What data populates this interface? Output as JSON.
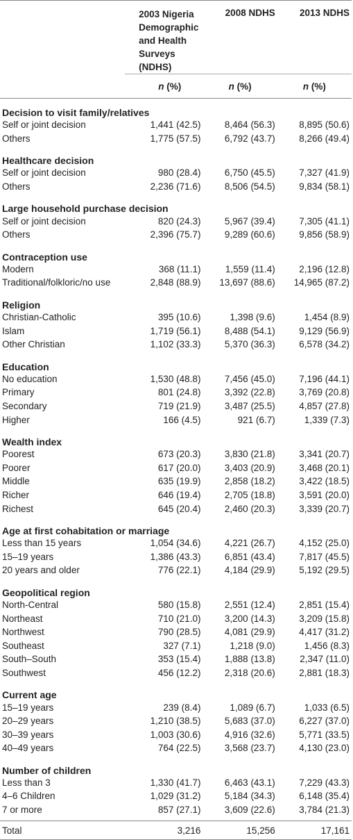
{
  "header": {
    "columns": [
      "2003 Nigeria Demographic and Health Surveys (NDHS)",
      "2008 NDHS",
      "2013 NDHS"
    ],
    "units": [
      {
        "symbol": "n",
        "suffix": "(%)"
      },
      {
        "symbol": "n",
        "suffix": "(%)"
      },
      {
        "symbol": "n",
        "suffix": "(%)"
      }
    ]
  },
  "sections": [
    {
      "title": "Decision to visit family/relatives",
      "rows": [
        [
          "Self or joint decision",
          "1,441 (42.5)",
          "8,464 (56.3)",
          "8,895 (50.6)"
        ],
        [
          "Others",
          "1,775 (57.5)",
          "6,792 (43.7)",
          "8,266 (49.4)"
        ]
      ]
    },
    {
      "title": "Healthcare decision",
      "rows": [
        [
          "Self or joint decision",
          "980 (28.4)",
          "6,750 (45.5)",
          "7,327 (41.9)"
        ],
        [
          "Others",
          "2,236 (71.6)",
          "8,506 (54.5)",
          "9,834 (58.1)"
        ]
      ]
    },
    {
      "title": "Large household purchase decision",
      "rows": [
        [
          "Self or joint decision",
          "820 (24.3)",
          "5,967 (39.4)",
          "7,305 (41.1)"
        ],
        [
          "Others",
          "2,396 (75.7)",
          "9,289 (60.6)",
          "9,856 (58.9)"
        ]
      ]
    },
    {
      "title": "Contraception use",
      "rows": [
        [
          "Modern",
          "368 (11.1)",
          "1,559 (11.4)",
          "2,196 (12.8)"
        ],
        [
          "Traditional/folkloric/no use",
          "2,848 (88.9)",
          "13,697 (88.6)",
          "14,965 (87.2)"
        ]
      ]
    },
    {
      "title": "Religion",
      "rows": [
        [
          "Christian-Catholic",
          "395 (10.6)",
          "1,398 (9.6)",
          "1,454 (8.9)"
        ],
        [
          "Islam",
          "1,719 (56.1)",
          "8,488 (54.1)",
          "9,129 (56.9)"
        ],
        [
          "Other Christian",
          "1,102 (33.3)",
          "5,370 (36.3)",
          "6,578 (34.2)"
        ]
      ]
    },
    {
      "title": "Education",
      "rows": [
        [
          "No education",
          "1,530 (48.8)",
          "7,456 (45.0)",
          "7,196 (44.1)"
        ],
        [
          "Primary",
          "801 (24.8)",
          "3,392 (22.8)",
          "3,769 (20.8)"
        ],
        [
          "Secondary",
          "719 (21.9)",
          "3,487 (25.5)",
          "4,857 (27.8)"
        ],
        [
          "Higher",
          "166 (4.5)",
          "921 (6.7)",
          "1,339 (7.3)"
        ]
      ]
    },
    {
      "title": "Wealth index",
      "rows": [
        [
          "Poorest",
          "673 (20.3)",
          "3,830 (21.8)",
          "3,341 (20.7)"
        ],
        [
          "Poorer",
          "617 (20.0)",
          "3,403 (20.9)",
          "3,468 (20.1)"
        ],
        [
          "Middle",
          "635 (19.9)",
          "2,858 (18.2)",
          "3,422 (18.5)"
        ],
        [
          "Richer",
          "646 (19.4)",
          "2,705 (18.8)",
          "3,591 (20.0)"
        ],
        [
          "Richest",
          "645 (20.4)",
          "2,460 (20.3)",
          "3,339 (20.7)"
        ]
      ]
    },
    {
      "title": "Age at first cohabitation or marriage",
      "rows": [
        [
          "Less than 15 years",
          "1,054 (34.6)",
          "4,221 (26.7)",
          "4,152 (25.0)"
        ],
        [
          "15–19 years",
          "1,386 (43.3)",
          "6,851 (43.4)",
          "7,817 (45.5)"
        ],
        [
          "20 years and older",
          "776 (22.1)",
          "4,184 (29.9)",
          "5,192 (29.5)"
        ]
      ]
    },
    {
      "title": "Geopolitical region",
      "rows": [
        [
          "North-Central",
          "580 (15.8)",
          "2,551 (12.4)",
          "2,851 (15.4)"
        ],
        [
          "Northeast",
          "710 (21.0)",
          "3,200 (14.3)",
          "3,209 (15.8)"
        ],
        [
          "Northwest",
          "790 (28.5)",
          "4,081 (29.9)",
          "4,417 (31.2)"
        ],
        [
          "Southeast",
          "327 (7.1)",
          "1,218 (9.0)",
          "1,456 (8.3)"
        ],
        [
          "South–South",
          "353 (15.4)",
          "1,888 (13.8)",
          "2,347 (11.0)"
        ],
        [
          "Southwest",
          "456 (12.2)",
          "2,318 (20.6)",
          "2,881 (18.3)"
        ]
      ]
    },
    {
      "title": "Current age",
      "rows": [
        [
          "15–19 years",
          "239 (8.4)",
          "1,089 (6.7)",
          "1,033 (6.5)"
        ],
        [
          "20–29 years",
          "1,210 (38.5)",
          "5,683 (37.0)",
          "6,227 (37.0)"
        ],
        [
          "30–39 years",
          "1,003 (30.6)",
          "4,916 (32.6)",
          "5,771 (33.5)"
        ],
        [
          "40–49 years",
          "764 (22.5)",
          "3,568 (23.7)",
          "4,130 (23.0)"
        ]
      ]
    },
    {
      "title": "Number of children",
      "rows": [
        [
          "Less than 3",
          "1,330 (41.7)",
          "6,463 (43.1)",
          "7,229 (43.3)"
        ],
        [
          "4–6 Children",
          "1,029 (31.2)",
          "5,184 (34.3)",
          "6,148 (35.4)"
        ],
        [
          "7 or more",
          "857 (27.1)",
          "3,609 (22.6)",
          "3,784 (21.3)"
        ]
      ]
    }
  ],
  "total": [
    "Total",
    "3,216",
    "15,256",
    "17,161"
  ]
}
